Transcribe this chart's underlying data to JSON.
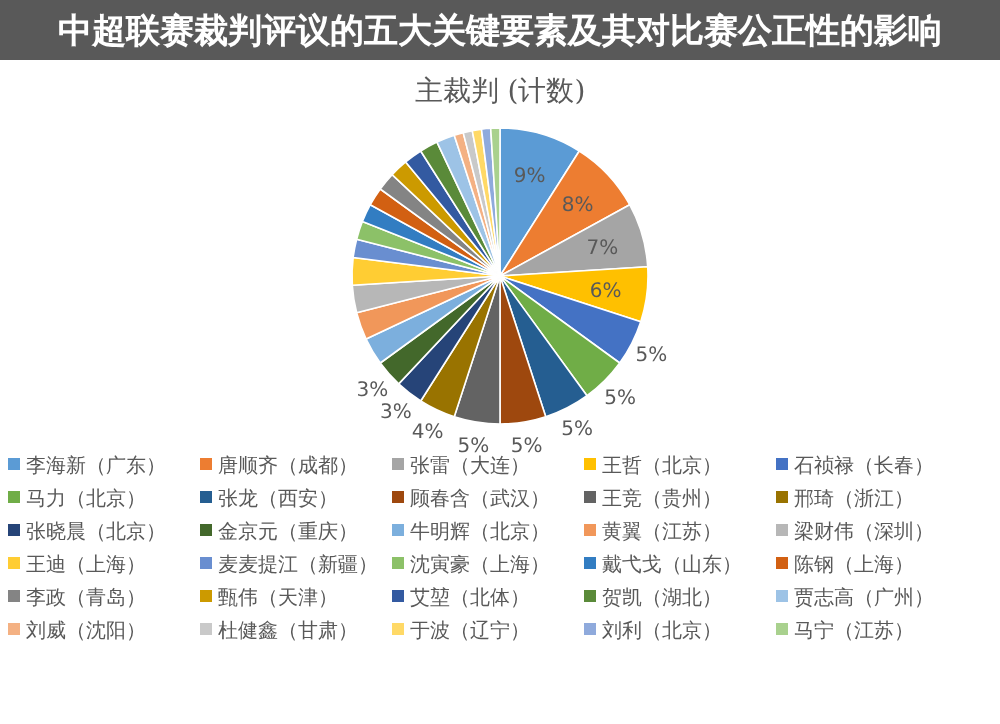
{
  "chart_data": {
    "type": "pie",
    "title": "主裁判 (计数)",
    "annotations": [
      "中超联赛裁判评议的五大关键要素及其对比赛公正性的影响"
    ],
    "categories": [
      "李海新（广东）",
      "唐顺齐（成都）",
      "张雷（大连）",
      "王哲（北京）",
      "石祯禄（长春）",
      "马力（北京）",
      "张龙（西安）",
      "顾春含（武汉）",
      "王竞（贵州）",
      "邢琦（浙江）",
      "张晓晨（北京）",
      "金京元（重庆）",
      "牛明辉（北京）",
      "黄翼（江苏）",
      "梁财伟（深圳）",
      "王迪（上海）",
      "麦麦提江（新疆）",
      "沈寅豪（上海）",
      "戴弋戈（山东）",
      "陈钢（上海）",
      "李政（青岛）",
      "甄伟（天津）",
      "艾堃（北体）",
      "贺凯（湖北）",
      "贾志高（广州）",
      "刘威（沈阳）",
      "杜健鑫（甘肃）",
      "于波（辽宁）",
      "刘利（北京）",
      "马宁（江苏）"
    ],
    "values": [
      9,
      8,
      7,
      6,
      5,
      5,
      5,
      5,
      5,
      4,
      3,
      3,
      3,
      3,
      3,
      3,
      2,
      2,
      2,
      2,
      2,
      2,
      2,
      2,
      2,
      1,
      1,
      1,
      1,
      1
    ],
    "value_labels": [
      "9%",
      "8%",
      "7%",
      "6%",
      "5%",
      "5%",
      "5%",
      "5%",
      "5%",
      "4%",
      "3%",
      "3%",
      null,
      null,
      null,
      null,
      null,
      null,
      null,
      null,
      null,
      null,
      null,
      null,
      null,
      null,
      null,
      null,
      null,
      null
    ],
    "colors": [
      "#5b9bd5",
      "#ed7d31",
      "#a5a5a5",
      "#ffc000",
      "#4472c4",
      "#70ad47",
      "#255e91",
      "#9e480e",
      "#636363",
      "#997300",
      "#264478",
      "#43682b",
      "#7cafdd",
      "#f1975a",
      "#b7b7b7",
      "#ffcd33",
      "#698ed0",
      "#8cc168",
      "#327dc2",
      "#d26012",
      "#848484",
      "#cc9a00",
      "#335aa1",
      "#5a8a39",
      "#9dc3e6",
      "#f4b183",
      "#c9c9c9",
      "#ffd966",
      "#8faadc",
      "#a9d18e"
    ],
    "legend": "bottom"
  }
}
